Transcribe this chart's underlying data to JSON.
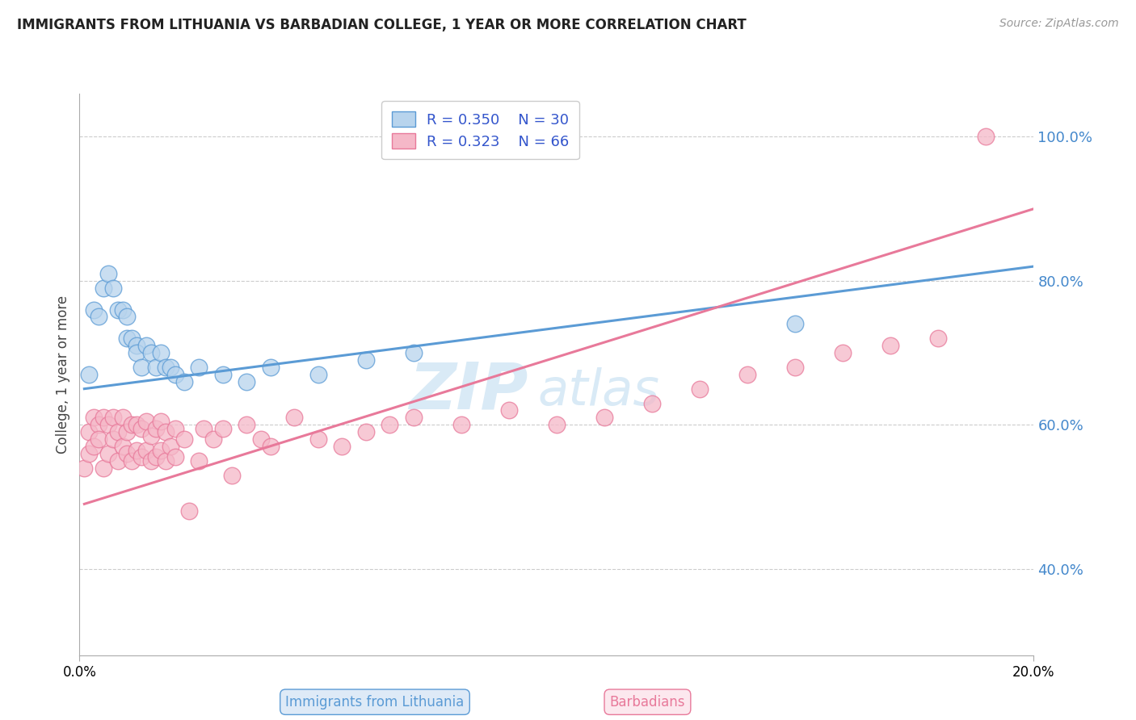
{
  "title": "IMMIGRANTS FROM LITHUANIA VS BARBADIAN COLLEGE, 1 YEAR OR MORE CORRELATION CHART",
  "source_text": "Source: ZipAtlas.com",
  "ylabel": "College, 1 year or more",
  "xaxis_label_blue": "Immigrants from Lithuania",
  "xaxis_label_pink": "Barbadians",
  "xlim": [
    0.0,
    0.2
  ],
  "ylim": [
    0.28,
    1.06
  ],
  "ytick_labels": [
    "40.0%",
    "60.0%",
    "80.0%",
    "100.0%"
  ],
  "yticks": [
    0.4,
    0.6,
    0.8,
    1.0
  ],
  "blue_R": "0.350",
  "blue_N": "30",
  "pink_R": "0.323",
  "pink_N": "66",
  "blue_fill": "#b8d4ed",
  "pink_fill": "#f5b8c8",
  "blue_edge": "#5b9bd5",
  "pink_edge": "#e8799a",
  "blue_line": "#5b9bd5",
  "pink_line": "#e8799a",
  "legend_text_color": "#3355cc",
  "watermark_color": "#d5e8f5",
  "blue_scatter_x": [
    0.002,
    0.003,
    0.004,
    0.005,
    0.006,
    0.007,
    0.008,
    0.009,
    0.01,
    0.01,
    0.011,
    0.012,
    0.012,
    0.013,
    0.014,
    0.015,
    0.016,
    0.017,
    0.018,
    0.019,
    0.02,
    0.022,
    0.025,
    0.03,
    0.035,
    0.04,
    0.05,
    0.06,
    0.07,
    0.15
  ],
  "blue_scatter_y": [
    0.67,
    0.76,
    0.75,
    0.79,
    0.81,
    0.79,
    0.76,
    0.76,
    0.72,
    0.75,
    0.72,
    0.71,
    0.7,
    0.68,
    0.71,
    0.7,
    0.68,
    0.7,
    0.68,
    0.68,
    0.67,
    0.66,
    0.68,
    0.67,
    0.66,
    0.68,
    0.67,
    0.69,
    0.7,
    0.74
  ],
  "pink_scatter_x": [
    0.001,
    0.002,
    0.002,
    0.003,
    0.003,
    0.004,
    0.004,
    0.005,
    0.005,
    0.006,
    0.006,
    0.007,
    0.007,
    0.008,
    0.008,
    0.009,
    0.009,
    0.01,
    0.01,
    0.011,
    0.011,
    0.012,
    0.012,
    0.013,
    0.013,
    0.014,
    0.014,
    0.015,
    0.015,
    0.016,
    0.016,
    0.017,
    0.017,
    0.018,
    0.018,
    0.019,
    0.02,
    0.02,
    0.022,
    0.023,
    0.025,
    0.026,
    0.028,
    0.03,
    0.032,
    0.035,
    0.038,
    0.04,
    0.045,
    0.05,
    0.055,
    0.06,
    0.065,
    0.07,
    0.08,
    0.09,
    0.1,
    0.11,
    0.12,
    0.13,
    0.14,
    0.15,
    0.16,
    0.17,
    0.18,
    0.19
  ],
  "pink_scatter_y": [
    0.54,
    0.59,
    0.56,
    0.61,
    0.57,
    0.6,
    0.58,
    0.54,
    0.61,
    0.56,
    0.6,
    0.58,
    0.61,
    0.55,
    0.59,
    0.57,
    0.61,
    0.56,
    0.59,
    0.55,
    0.6,
    0.565,
    0.6,
    0.555,
    0.595,
    0.565,
    0.605,
    0.55,
    0.585,
    0.555,
    0.595,
    0.565,
    0.605,
    0.55,
    0.59,
    0.57,
    0.555,
    0.595,
    0.58,
    0.48,
    0.55,
    0.595,
    0.58,
    0.595,
    0.53,
    0.6,
    0.58,
    0.57,
    0.61,
    0.58,
    0.57,
    0.59,
    0.6,
    0.61,
    0.6,
    0.62,
    0.6,
    0.61,
    0.63,
    0.65,
    0.67,
    0.68,
    0.7,
    0.71,
    0.72,
    1.0
  ],
  "blue_line_x": [
    0.001,
    0.2
  ],
  "blue_line_y": [
    0.65,
    0.82
  ],
  "pink_line_x": [
    0.001,
    0.2
  ],
  "pink_line_y": [
    0.49,
    0.9
  ]
}
